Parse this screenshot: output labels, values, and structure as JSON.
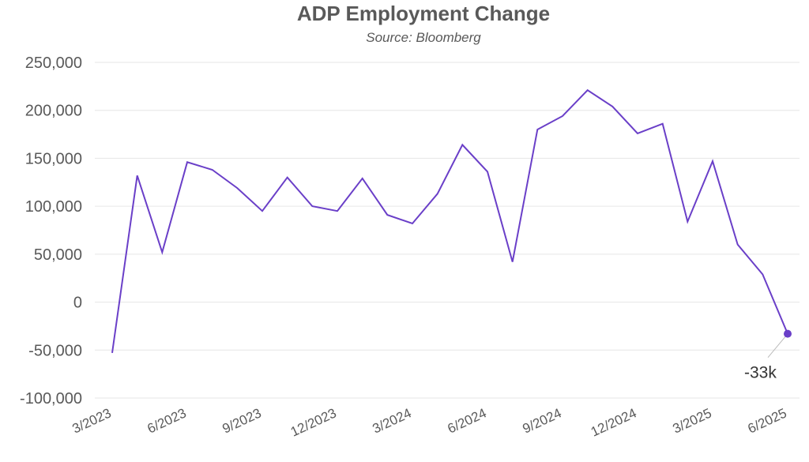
{
  "chart_data": {
    "type": "line",
    "title": "ADP Employment Change",
    "subtitle": "Source: Bloomberg",
    "xlabel": "",
    "ylabel": "",
    "ylim": [
      -100000,
      250000
    ],
    "yticks": [
      250000,
      200000,
      150000,
      100000,
      50000,
      0,
      -50000,
      -100000
    ],
    "ytick_labels": [
      "250,000",
      "200,000",
      "150,000",
      "100,000",
      "50,000",
      "0",
      "-50,000",
      "-100,000"
    ],
    "xtick_labels": [
      "3/2023",
      "6/2023",
      "9/2023",
      "12/2023",
      "3/2024",
      "6/2024",
      "9/2024",
      "12/2024",
      "3/2025",
      "6/2025"
    ],
    "grid": true,
    "legend": "none",
    "colors": {
      "line": "#6a3fc8",
      "grid": "#e6e6e6",
      "text": "#595959"
    },
    "series": [
      {
        "x": [
          "3/2023",
          "4/2023",
          "5/2023",
          "6/2023",
          "7/2023",
          "8/2023",
          "9/2023",
          "10/2023",
          "11/2023",
          "12/2023",
          "1/2024",
          "2/2024",
          "3/2024",
          "4/2024",
          "5/2024",
          "6/2024",
          "7/2024",
          "8/2024",
          "9/2024",
          "10/2024",
          "11/2024",
          "12/2024",
          "1/2025",
          "2/2025",
          "3/2025",
          "4/2025",
          "5/2025",
          "6/2025"
        ],
        "values": [
          -53000,
          132000,
          52000,
          146000,
          138000,
          119000,
          95000,
          130000,
          100000,
          95000,
          129000,
          91000,
          82000,
          113000,
          164000,
          136000,
          42000,
          180000,
          194000,
          221000,
          204000,
          176000,
          186000,
          84000,
          147000,
          60000,
          29000,
          -33000
        ]
      }
    ],
    "annotations": [
      {
        "label": "-33k",
        "x": "6/2025",
        "value": -33000
      }
    ]
  }
}
